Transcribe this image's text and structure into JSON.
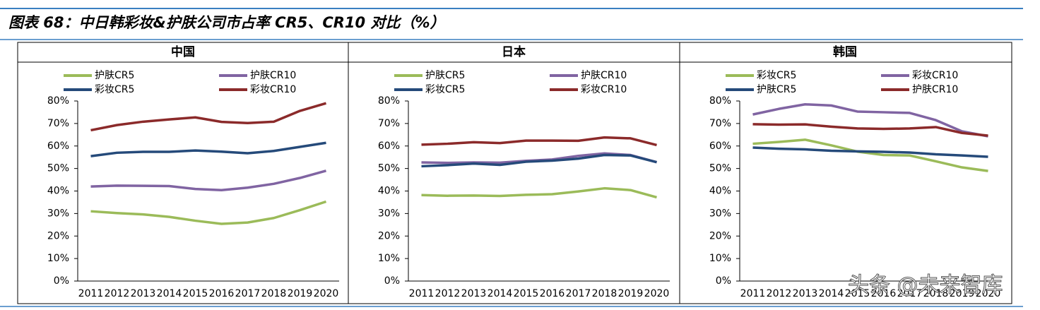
{
  "title": "图表 68：中日韩彩妆&护肤公司市占率 CR5、CR10 对比（%）",
  "watermark": "头条 @未来智库",
  "chart_data": [
    {
      "type": "line",
      "title": "中国",
      "categories": [
        "2011",
        "2012",
        "2013",
        "2014",
        "2015",
        "2016",
        "2017",
        "2018",
        "2019",
        "2020"
      ],
      "ylim": [
        0,
        80
      ],
      "yticks": [
        {
          "value": 0,
          "label": "0%"
        },
        {
          "value": 10,
          "label": "10%"
        },
        {
          "value": 20,
          "label": "20%"
        },
        {
          "value": 30,
          "label": "30%"
        },
        {
          "value": 40,
          "label": "40%"
        },
        {
          "value": 50,
          "label": "50%"
        },
        {
          "value": 60,
          "label": "60%"
        },
        {
          "value": 70,
          "label": "70%"
        },
        {
          "value": 80,
          "label": "80%"
        }
      ],
      "series": [
        {
          "name": "护肤CR5",
          "color": "#9bbb59",
          "values": [
            31,
            30.2,
            29.6,
            28.5,
            26.8,
            25.4,
            26,
            28,
            31.5,
            35.3
          ]
        },
        {
          "name": "护肤CR10",
          "color": "#8064a2",
          "values": [
            42,
            42.4,
            42.3,
            42.2,
            40.9,
            40.4,
            41.5,
            43.2,
            45.8,
            49
          ]
        },
        {
          "name": "彩妆CR5",
          "color": "#254a7a",
          "values": [
            55.5,
            57,
            57.4,
            57.4,
            58,
            57.5,
            56.8,
            57.8,
            59.6,
            61.4
          ]
        },
        {
          "name": "彩妆CR10",
          "color": "#8b2a2a",
          "values": [
            67,
            69.3,
            70.8,
            71.8,
            72.7,
            70.7,
            70.2,
            70.8,
            75.6,
            79
          ]
        }
      ]
    },
    {
      "type": "line",
      "title": "日本",
      "categories": [
        "2011",
        "2012",
        "2013",
        "2014",
        "2015",
        "2016",
        "2017",
        "2018",
        "2019",
        "2020"
      ],
      "ylim": [
        0,
        80
      ],
      "yticks": [
        {
          "value": 0,
          "label": "0%"
        },
        {
          "value": 10,
          "label": "10%"
        },
        {
          "value": 20,
          "label": "20%"
        },
        {
          "value": 30,
          "label": "30%"
        },
        {
          "value": 40,
          "label": "40%"
        },
        {
          "value": 50,
          "label": "50%"
        },
        {
          "value": 60,
          "label": "60%"
        },
        {
          "value": 70,
          "label": "70%"
        },
        {
          "value": 80,
          "label": "80%"
        }
      ],
      "series": [
        {
          "name": "护肤CR5",
          "color": "#9bbb59",
          "values": [
            38.2,
            37.9,
            38,
            37.8,
            38.3,
            38.6,
            39.8,
            41.2,
            40.4,
            37.2
          ]
        },
        {
          "name": "护肤CR10",
          "color": "#8064a2",
          "values": [
            52.7,
            52.5,
            52.7,
            52.6,
            53.4,
            54,
            55.6,
            56.7,
            56,
            52.8
          ]
        },
        {
          "name": "彩妆CR5",
          "color": "#254a7a",
          "values": [
            51,
            51.5,
            52.2,
            51.6,
            53,
            53.5,
            54.4,
            56,
            55.8,
            52.8
          ]
        },
        {
          "name": "彩妆CR10",
          "color": "#8b2a2a",
          "values": [
            60.6,
            61,
            61.7,
            61.3,
            62.4,
            62.4,
            62.3,
            63.8,
            63.4,
            60.4
          ]
        }
      ]
    },
    {
      "type": "line",
      "title": "韩国",
      "categories": [
        "2011",
        "2012",
        "2013",
        "2014",
        "2015",
        "2016",
        "2017",
        "2018",
        "2019",
        "2020"
      ],
      "ylim": [
        0,
        80
      ],
      "yticks": [
        {
          "value": 0,
          "label": "0%"
        },
        {
          "value": 10,
          "label": "10%"
        },
        {
          "value": 20,
          "label": "20%"
        },
        {
          "value": 30,
          "label": "30%"
        },
        {
          "value": 40,
          "label": "40%"
        },
        {
          "value": 50,
          "label": "50%"
        },
        {
          "value": 60,
          "label": "60%"
        },
        {
          "value": 70,
          "label": "70%"
        },
        {
          "value": 80,
          "label": "80%"
        }
      ],
      "series": [
        {
          "name": "彩妆CR5",
          "color": "#9bbb59",
          "values": [
            61,
            61.8,
            62.8,
            60.3,
            57.5,
            56,
            55.8,
            53.2,
            50.5,
            48.9
          ]
        },
        {
          "name": "彩妆CR10",
          "color": "#8064a2",
          "values": [
            74,
            76.5,
            78.5,
            78,
            75.3,
            75,
            74.7,
            71.5,
            66.5,
            64.3
          ]
        },
        {
          "name": "护肤CR5",
          "color": "#254a7a",
          "values": [
            59.3,
            58.8,
            58.5,
            57.9,
            57.6,
            57.4,
            57.1,
            56.3,
            55.8,
            55.2
          ]
        },
        {
          "name": "护肤CR10",
          "color": "#8b2a2a",
          "values": [
            69.7,
            69.5,
            69.6,
            68.6,
            67.8,
            67.6,
            67.8,
            68.4,
            65.8,
            64.6
          ]
        }
      ]
    }
  ]
}
